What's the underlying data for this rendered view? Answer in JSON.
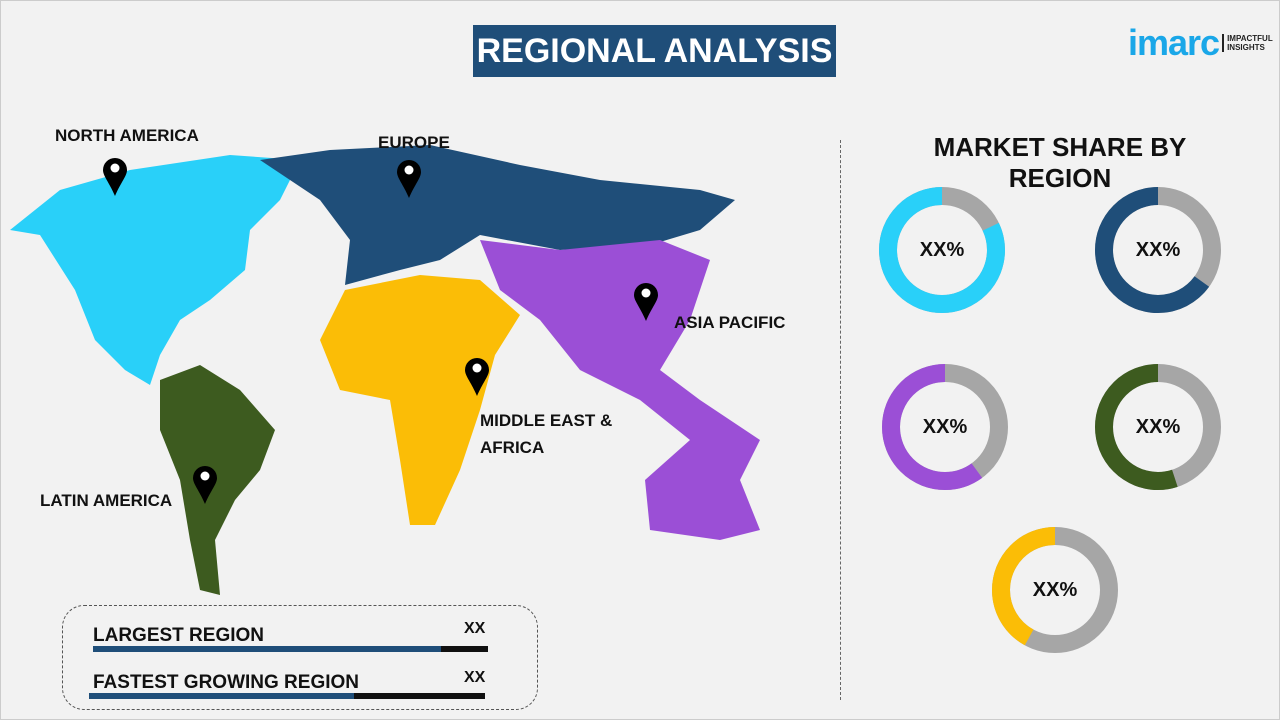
{
  "header": {
    "title": "REGIONAL ANALYSIS",
    "logo_main": "imarc",
    "logo_tag_1": "IMPACTFUL",
    "logo_tag_2": "INSIGHTS"
  },
  "map": {
    "regions": [
      {
        "name": "NORTH AMERICA",
        "color": "#29d0f9"
      },
      {
        "name": "EUROPE",
        "color": "#1f4e79"
      },
      {
        "name": "ASIA PACIFIC",
        "color": "#9b4fd6"
      },
      {
        "name": "MIDDLE EAST &",
        "name2": "AFRICA",
        "color": "#fbbd06"
      },
      {
        "name": "LATIN AMERICA",
        "color": "#3d5b1f"
      }
    ]
  },
  "market": {
    "title": "MARKET SHARE BY REGION",
    "donuts": [
      {
        "label": "XX%",
        "color": "#29d0f9",
        "fill": 0.82
      },
      {
        "label": "XX%",
        "color": "#1f4e79",
        "fill": 0.65
      },
      {
        "label": "XX%",
        "color": "#9b4fd6",
        "fill": 0.6
      },
      {
        "label": "XX%",
        "color": "#3d5b1f",
        "fill": 0.55
      },
      {
        "label": "XX%",
        "color": "#fbbd06",
        "fill": 0.42
      }
    ]
  },
  "summary": [
    {
      "label": "LARGEST REGION",
      "value": "XX",
      "fill": 0.88
    },
    {
      "label": "FASTEST GROWING REGION",
      "value": "XX",
      "fill": 0.67
    }
  ]
}
